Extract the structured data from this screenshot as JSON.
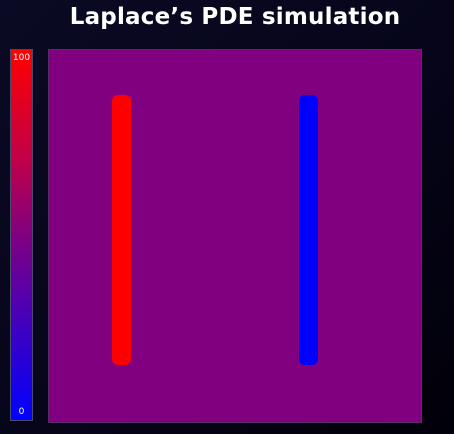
{
  "header": {
    "title": "Laplace’s PDE simulation"
  },
  "colorbar": {
    "max_label": "100",
    "min_label": "0",
    "max_color": "#ff0000",
    "min_color": "#0000ff",
    "mid_color": "#800080"
  },
  "field": {
    "background_color": "#800080",
    "electrodes": [
      {
        "name": "left",
        "color": "#ff0000",
        "potential": 100
      },
      {
        "name": "right",
        "color": "#0000ff",
        "potential": 0
      }
    ]
  }
}
